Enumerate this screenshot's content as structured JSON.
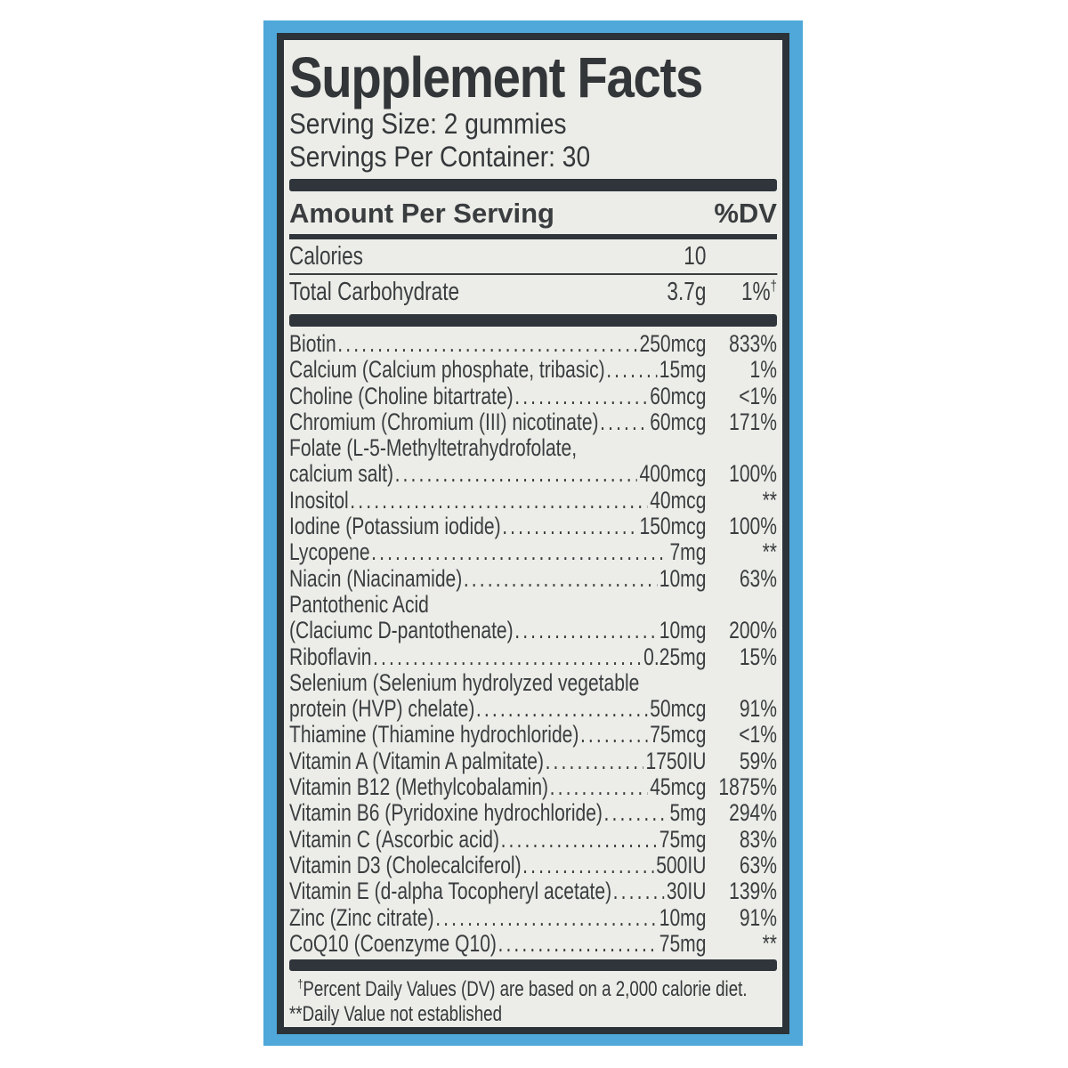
{
  "label": {
    "title": "Supplement Facts",
    "serving_size": "Serving Size: 2 gummies",
    "servings_per_container": "Servings Per Container: 30",
    "amount_header": "Amount Per Serving",
    "dv_header": "%DV",
    "calories_row": {
      "name": "Calories",
      "amount": "10",
      "dv": ""
    },
    "carb_row": {
      "name": "Total Carbohydrate",
      "amount": "3.7g",
      "dv": "1%",
      "dv_sup": "†"
    },
    "footnotes": {
      "dv_sup": "†",
      "dv_text": "Percent Daily Values (DV) are based on a 2,000 calorie diet.",
      "ne_prefix": "**",
      "ne_text": "Daily Value not established"
    }
  },
  "nutrients": [
    {
      "name": "Biotin",
      "amount": "250mcg",
      "dv": "833%"
    },
    {
      "name": "Calcium (Calcium phosphate, tribasic)",
      "amount": "15mg",
      "dv": "1%"
    },
    {
      "name": "Choline (Choline bitartrate)",
      "amount": "60mcg",
      "dv": "<1%"
    },
    {
      "name": "Chromium (Chromium (III) nicotinate)",
      "amount": "60mcg",
      "dv": "171%"
    },
    {
      "name": "Folate (L-5-Methyltetrahydrofolate,",
      "name2": "calcium salt)",
      "amount": "400mcg",
      "dv": "100%"
    },
    {
      "name": "Inositol",
      "amount": "40mcg",
      "dv": "**"
    },
    {
      "name": "Iodine (Potassium iodide)",
      "amount": "150mcg",
      "dv": "100%"
    },
    {
      "name": "Lycopene",
      "amount": "7mg",
      "dv": "**"
    },
    {
      "name": "Niacin (Niacinamide)",
      "amount": "10mg",
      "dv": "63%"
    },
    {
      "name": "Pantothenic Acid",
      "name2": "(Claciumc D-pantothenate)",
      "amount": "10mg",
      "dv": "200%"
    },
    {
      "name": "Riboflavin",
      "amount": "0.25mg",
      "dv": "15%"
    },
    {
      "name": "Selenium (Selenium hydrolyzed vegetable",
      "name2": "protein (HVP) chelate)",
      "amount": "50mcg",
      "dv": "91%"
    },
    {
      "name": "Thiamine (Thiamine hydrochloride)",
      "amount": "75mcg",
      "dv": "<1%"
    },
    {
      "name": "Vitamin A (Vitamin A palmitate)",
      "amount": "1750IU",
      "dv": "59%"
    },
    {
      "name": "Vitamin B12 (Methylcobalamin)",
      "amount": "45mcg",
      "dv": "1875%"
    },
    {
      "name": "Vitamin B6 (Pyridoxine hydrochloride)",
      "amount": "5mg",
      "dv": "294%"
    },
    {
      "name": "Vitamin C (Ascorbic acid)",
      "amount": "75mg",
      "dv": "83%"
    },
    {
      "name": "Vitamin D3 (Cholecalciferol)",
      "amount": "500IU",
      "dv": "63%"
    },
    {
      "name": "Vitamin E (d-alpha Tocopheryl acetate)",
      "amount": "30IU",
      "dv": "139%"
    },
    {
      "name": "Zinc (Zinc citrate)",
      "amount": "10mg",
      "dv": "91%"
    },
    {
      "name": "CoQ10 (Coenzyme Q10)",
      "amount": "75mg",
      "dv": "**"
    }
  ],
  "colors": {
    "mat_blue": "#4fa8d9",
    "border_dark": "#2b3238",
    "panel_bg": "#ecede8",
    "text": "#3a3d3f",
    "bar": "#2f353a"
  }
}
